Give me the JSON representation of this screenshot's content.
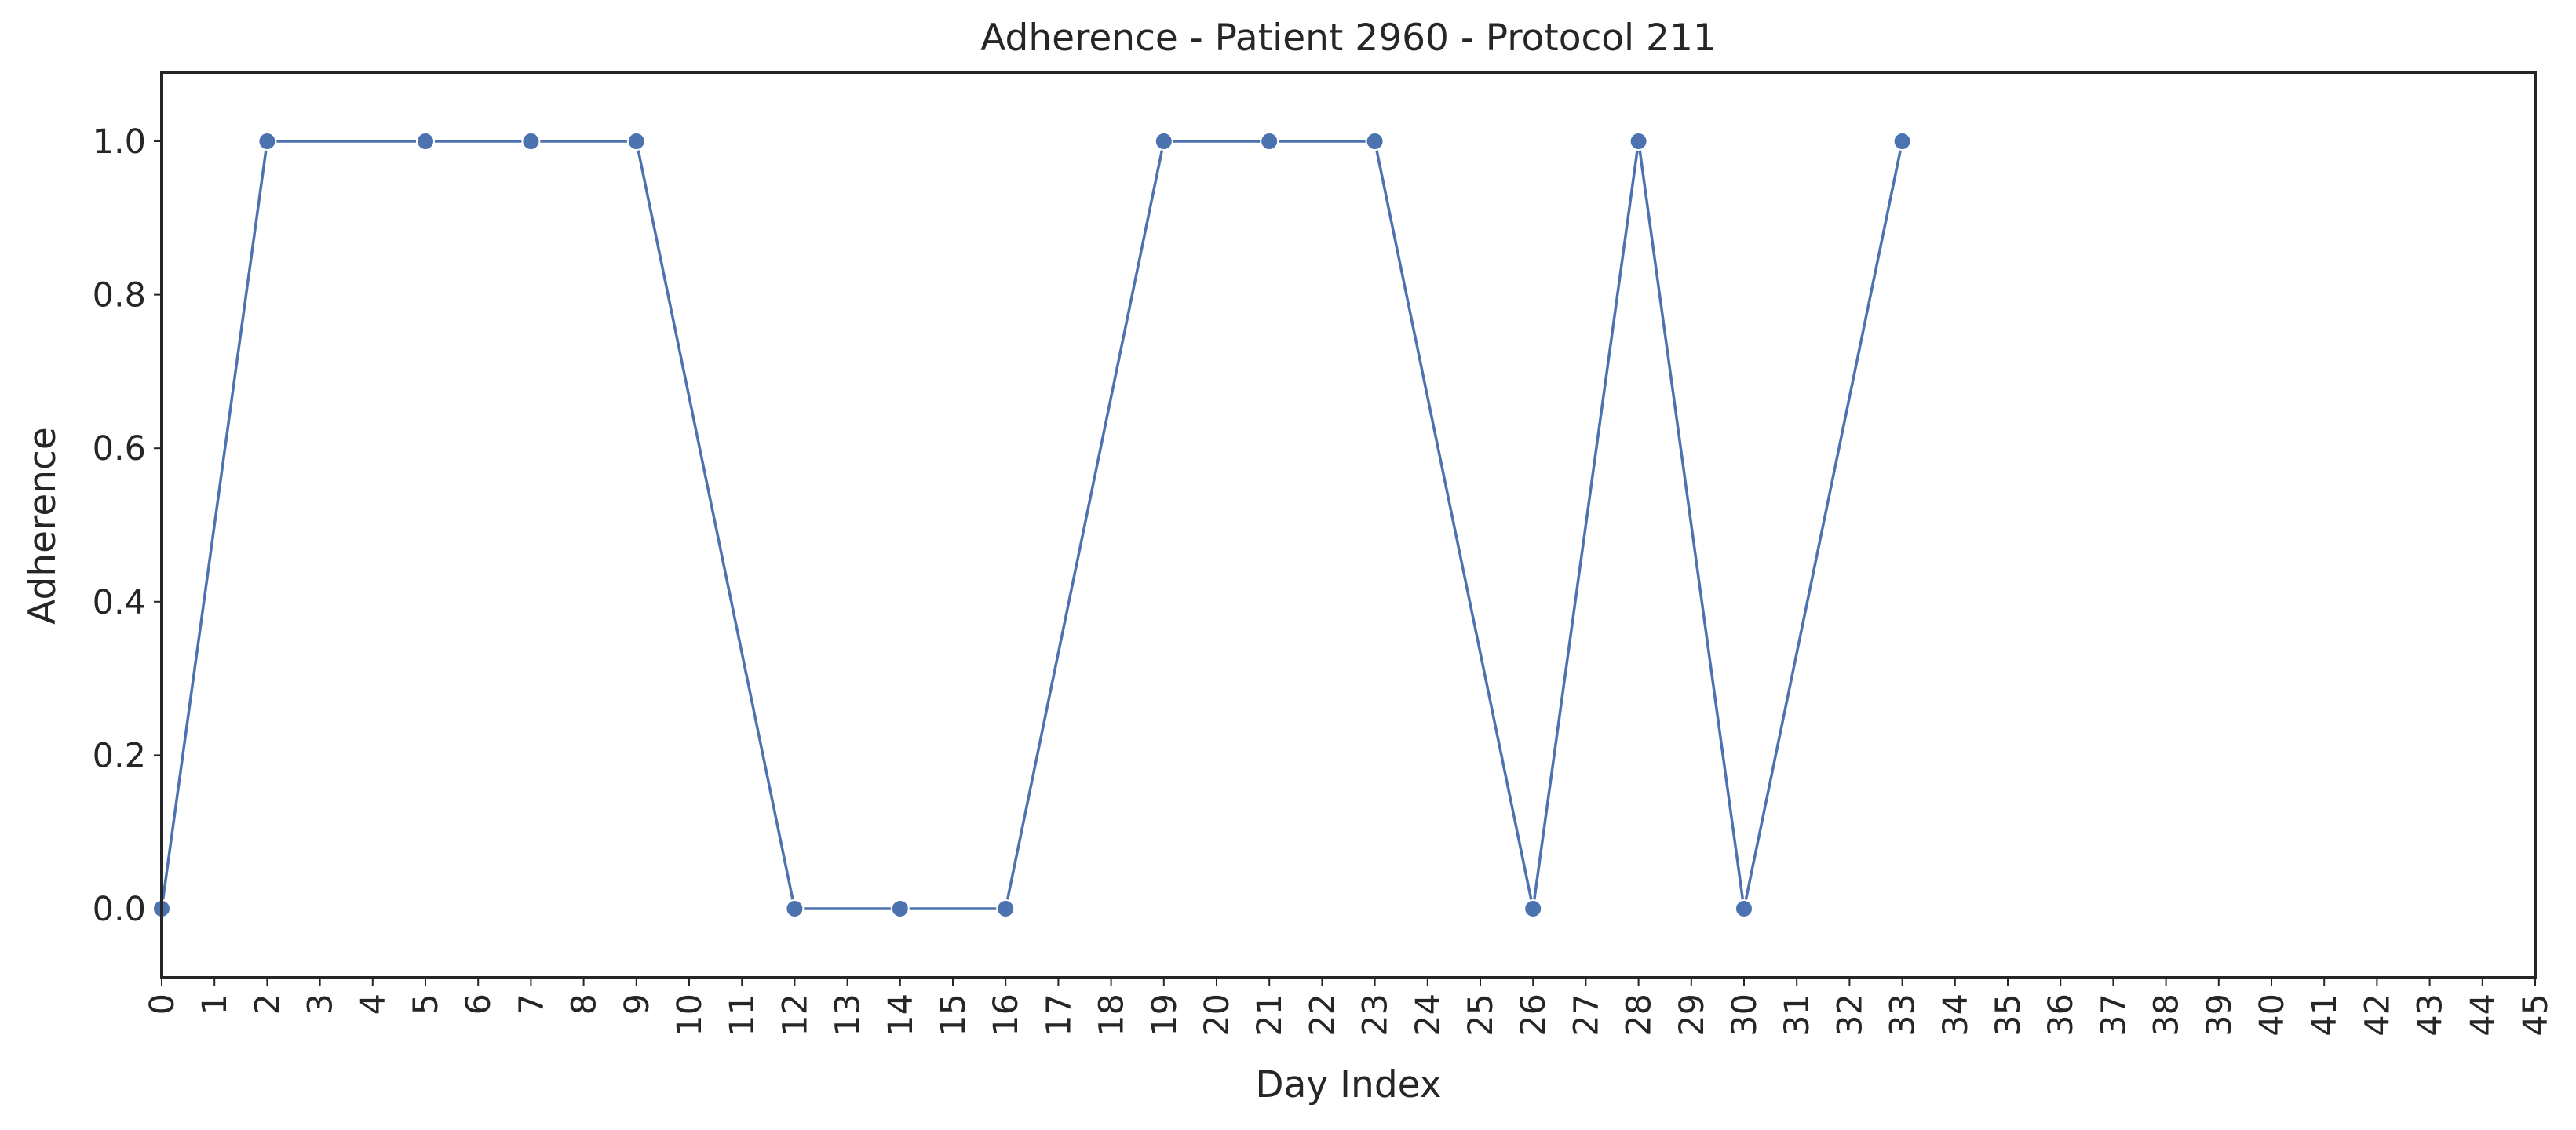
{
  "chart_data": {
    "type": "line",
    "title": "Adherence - Patient 2960 - Protocol 211",
    "xlabel": "Day Index",
    "ylabel": "Adherence",
    "x_ticks": [
      0,
      1,
      2,
      3,
      4,
      5,
      6,
      7,
      8,
      9,
      10,
      11,
      12,
      13,
      14,
      15,
      16,
      17,
      18,
      19,
      20,
      21,
      22,
      23,
      24,
      25,
      26,
      27,
      28,
      29,
      30,
      31,
      32,
      33,
      34,
      35,
      36,
      37,
      38,
      39,
      40,
      41,
      42,
      43,
      44,
      45
    ],
    "y_ticks": [
      0.0,
      0.2,
      0.4,
      0.6,
      0.8,
      1.0
    ],
    "y_tick_labels": [
      "0.0",
      "0.2",
      "0.4",
      "0.6",
      "0.8",
      "1.0"
    ],
    "xlim": [
      0,
      45
    ],
    "ylim": [
      -0.09,
      1.09
    ],
    "grid": false,
    "series": [
      {
        "color": "#4c72b0",
        "x": [
          0,
          2,
          5,
          7,
          9,
          12,
          14,
          16,
          19,
          21,
          23,
          26,
          28,
          30,
          33
        ],
        "y": [
          0,
          1,
          1,
          1,
          1,
          0,
          0,
          0,
          1,
          1,
          1,
          0,
          1,
          0,
          1
        ]
      }
    ]
  }
}
